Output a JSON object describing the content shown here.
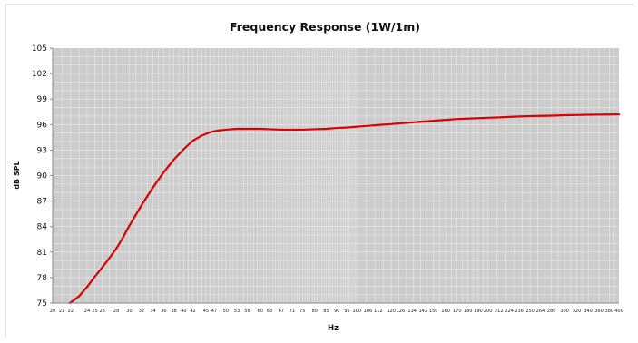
{
  "colors": {
    "plot_background": "#cccccc",
    "grid": "#ebebeb",
    "curve": "#dd0000",
    "axis": "#888888",
    "frame": "#c8c8c8"
  },
  "chart_data": {
    "type": "line",
    "title": "Frequency Response (1W/1m)",
    "xlabel": "Hz",
    "ylabel": "dB SPL",
    "x_scale": "log",
    "xlim": [
      20,
      400
    ],
    "ylim": [
      75,
      105
    ],
    "grid": true,
    "legend": "none",
    "y_ticks": [
      75,
      78,
      81,
      84,
      87,
      90,
      93,
      96,
      99,
      102,
      105
    ],
    "x_ticks": [
      "20",
      "21",
      "22",
      "24",
      "25",
      "26",
      "28",
      "30",
      "32",
      "34",
      "36",
      "38",
      "40",
      "42",
      "45",
      "47",
      "50",
      "53",
      "56",
      "60",
      "63",
      "67",
      "71",
      "75",
      "80",
      "85",
      "90",
      "95",
      "100",
      "106",
      "112",
      "120",
      "126",
      "134",
      "142",
      "150",
      "160",
      "170",
      "180",
      "190",
      "200",
      "212",
      "224",
      "236",
      "250",
      "264",
      "280",
      "300",
      "320",
      "340",
      "360",
      "380",
      "400"
    ],
    "series": [
      {
        "x": [
          21.9,
          23,
          24,
          25,
          26,
          27,
          28,
          29,
          30,
          32,
          34,
          36,
          38,
          40,
          42,
          44,
          46,
          48,
          50,
          53,
          56,
          60,
          63,
          67,
          71,
          75,
          80,
          85,
          90,
          95,
          100,
          106,
          112,
          120,
          126,
          134,
          142,
          150,
          160,
          170,
          180,
          190,
          200,
          212,
          224,
          236,
          250,
          264,
          280,
          300,
          320,
          340,
          360,
          380,
          400
        ],
        "y": [
          75.0,
          75.8,
          76.9,
          78.1,
          79.2,
          80.3,
          81.4,
          82.7,
          84.1,
          86.5,
          88.6,
          90.4,
          91.9,
          93.1,
          94.1,
          94.7,
          95.1,
          95.3,
          95.4,
          95.5,
          95.5,
          95.5,
          95.45,
          95.4,
          95.4,
          95.4,
          95.45,
          95.5,
          95.6,
          95.65,
          95.75,
          95.85,
          95.95,
          96.05,
          96.15,
          96.25,
          96.35,
          96.45,
          96.55,
          96.65,
          96.7,
          96.75,
          96.8,
          96.85,
          96.9,
          96.95,
          97.0,
          97.02,
          97.05,
          97.1,
          97.12,
          97.15,
          97.17,
          97.18,
          97.2
        ]
      }
    ]
  }
}
